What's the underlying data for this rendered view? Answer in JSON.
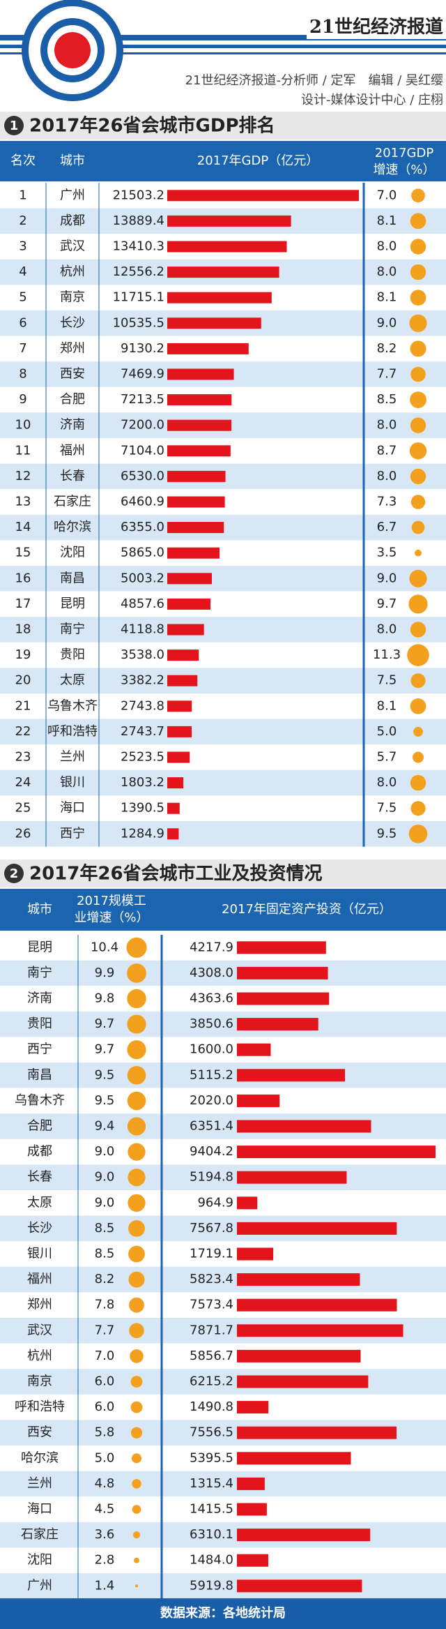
{
  "header": {
    "brand": "21世纪经济报道",
    "credit_line1": "21世纪经济报道-分析师 / 定军　编辑 / 吴红缨",
    "credit_line2": "设计-媒体设计中心 / 庄栩"
  },
  "sections": [
    {
      "number": "1",
      "title": "2017年26省会城市GDP排名",
      "columns": {
        "rank": "名次",
        "city": "城市",
        "value": "2017年GDP（亿元）",
        "growth": [
          "2017GDP",
          "增速（%）"
        ]
      },
      "rows": [
        [
          "1",
          "广州",
          "21503.2",
          "7.0"
        ],
        [
          "2",
          "成都",
          "13889.4",
          "8.1"
        ],
        [
          "3",
          "武汉",
          "13410.3",
          "8.0"
        ],
        [
          "4",
          "杭州",
          "12556.2",
          "8.0"
        ],
        [
          "5",
          "南京",
          "11715.1",
          "8.1"
        ],
        [
          "6",
          "长沙",
          "10535.5",
          "9.0"
        ],
        [
          "7",
          "郑州",
          "9130.2",
          "8.2"
        ],
        [
          "8",
          "西安",
          "7469.9",
          "7.7"
        ],
        [
          "9",
          "合肥",
          "7213.5",
          "8.5"
        ],
        [
          "10",
          "济南",
          "7200.0",
          "8.0"
        ],
        [
          "11",
          "福州",
          "7104.0",
          "8.7"
        ],
        [
          "12",
          "长春",
          "6530.0",
          "8.0"
        ],
        [
          "13",
          "石家庄",
          "6460.9",
          "7.3"
        ],
        [
          "14",
          "哈尔滨",
          "6355.0",
          "6.7"
        ],
        [
          "15",
          "沈阳",
          "5865.0",
          "3.5"
        ],
        [
          "16",
          "南昌",
          "5003.2",
          "9.0"
        ],
        [
          "17",
          "昆明",
          "4857.6",
          "9.7"
        ],
        [
          "18",
          "南宁",
          "4118.8",
          "8.0"
        ],
        [
          "19",
          "贵阳",
          "3538.0",
          "11.3"
        ],
        [
          "20",
          "太原",
          "3382.2",
          "7.5"
        ],
        [
          "21",
          "乌鲁木齐",
          "2743.8",
          "8.1"
        ],
        [
          "22",
          "呼和浩特",
          "2743.7",
          "5.0"
        ],
        [
          "23",
          "兰州",
          "2523.5",
          "5.7"
        ],
        [
          "24",
          "银川",
          "1803.2",
          "8.0"
        ],
        [
          "25",
          "海口",
          "1390.5",
          "7.5"
        ],
        [
          "26",
          "西宁",
          "1284.9",
          "9.5"
        ]
      ]
    },
    {
      "number": "2",
      "title": "2017年26省会城市工业及投资情况",
      "columns": {
        "city": "城市",
        "growth": [
          "2017规模工",
          "业增速（%）"
        ],
        "value": "2017年固定资产投资（亿元）"
      },
      "rows": [
        [
          "昆明",
          "10.4",
          "4217.9"
        ],
        [
          "南宁",
          "9.9",
          "4308.0"
        ],
        [
          "济南",
          "9.8",
          "4363.6"
        ],
        [
          "贵阳",
          "9.7",
          "3850.6"
        ],
        [
          "西宁",
          "9.7",
          "1600.0"
        ],
        [
          "南昌",
          "9.5",
          "5115.2"
        ],
        [
          "乌鲁木齐",
          "9.5",
          "2020.0"
        ],
        [
          "合肥",
          "9.4",
          "6351.4"
        ],
        [
          "成都",
          "9.0",
          "9404.2"
        ],
        [
          "长春",
          "9.0",
          "5194.8"
        ],
        [
          "太原",
          "9.0",
          "964.9"
        ],
        [
          "长沙",
          "8.5",
          "7567.8"
        ],
        [
          "银川",
          "8.5",
          "1719.1"
        ],
        [
          "福州",
          "8.2",
          "5823.4"
        ],
        [
          "郑州",
          "7.8",
          "7573.4"
        ],
        [
          "武汉",
          "7.7",
          "7871.7"
        ],
        [
          "杭州",
          "7.0",
          "5856.7"
        ],
        [
          "南京",
          "6.0",
          "6215.2"
        ],
        [
          "呼和浩特",
          "6.0",
          "1490.8"
        ],
        [
          "西安",
          "5.8",
          "7556.5"
        ],
        [
          "哈尔滨",
          "5.0",
          "5395.5"
        ],
        [
          "兰州",
          "4.8",
          "1315.4"
        ],
        [
          "海口",
          "4.5",
          "1415.5"
        ],
        [
          "石家庄",
          "3.6",
          "6310.1"
        ],
        [
          "沈阳",
          "2.8",
          "1484.0"
        ],
        [
          "广州",
          "1.4",
          "5919.8"
        ]
      ]
    }
  ],
  "footer": "数据来源：各地统计局"
}
